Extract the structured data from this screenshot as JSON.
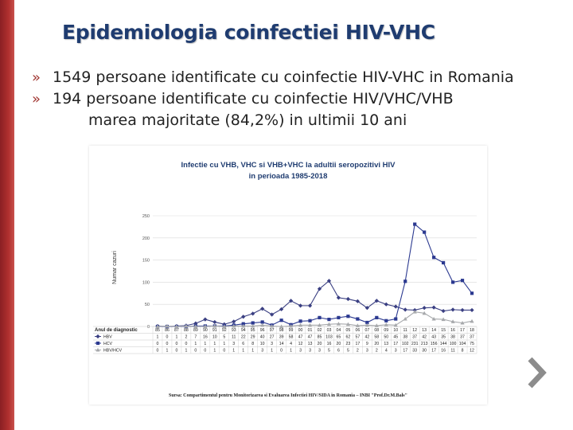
{
  "slide": {
    "title": "Epidemiologia coinfectiei HIV-VHC",
    "bullet_marker": "»",
    "bullets": [
      "1549 persoane identificate cu coinfectie HIV-VHC in Romania",
      "194 persoane identificate cu coinfectie HIV/VHC/VHB"
    ],
    "continuation": "marea majoritate (84,2%) in ultimii 10 ani"
  },
  "colors": {
    "accent_red": "#a03530",
    "title_blue": "#1f3c70",
    "vhb": "#3a3f82",
    "vhc": "#2b3990",
    "hbv_hcv": "#a7a9ac",
    "arrow": "#8c8c8c"
  },
  "chart_data": {
    "type": "line",
    "title": [
      "Infectie cu VHB, VHC si VHB+VHC la adultii seropozitivi HIV",
      "in perioada 1985-2018"
    ],
    "ylabel": "Numar cazuri",
    "ylim": [
      0,
      250
    ],
    "yticks": [
      0,
      50,
      100,
      150,
      200,
      250
    ],
    "table_header": "Anul de diagnostic",
    "categories": [
      "85",
      "86",
      "87",
      "88",
      "89",
      "90",
      "91",
      "92",
      "93",
      "94",
      "95",
      "96",
      "97",
      "98",
      "99",
      "00",
      "01",
      "02",
      "03",
      "04",
      "05",
      "06",
      "07",
      "08",
      "09",
      "10",
      "11",
      "12",
      "13",
      "14",
      "15",
      "16",
      "17",
      "18"
    ],
    "series": [
      {
        "name": "HBV",
        "marker": "diamond",
        "values": [
          1,
          0,
          1,
          2,
          7,
          16,
          10,
          5,
          11,
          22,
          29,
          40,
          27,
          39,
          58,
          47,
          47,
          85,
          103,
          65,
          62,
          57,
          42,
          58,
          50,
          45,
          38,
          37,
          42,
          43,
          35,
          38,
          37,
          37
        ]
      },
      {
        "name": "HCV",
        "marker": "square",
        "values": [
          0,
          0,
          0,
          0,
          1,
          1,
          1,
          1,
          3,
          6,
          8,
          10,
          3,
          14,
          4,
          12,
          13,
          20,
          16,
          20,
          23,
          17,
          9,
          20,
          13,
          17,
          102,
          231,
          213,
          156,
          144,
          100,
          104,
          75
        ]
      },
      {
        "name": "HBV/HCV",
        "marker": "triangle",
        "values": [
          0,
          1,
          0,
          1,
          0,
          0,
          1,
          0,
          1,
          1,
          1,
          3,
          1,
          0,
          1,
          3,
          3,
          3,
          5,
          6,
          5,
          2,
          3,
          2,
          4,
          3,
          17,
          33,
          30,
          17,
          16,
          11,
          8,
          12
        ]
      }
    ],
    "source": "Sursa: Compartimentul pentru Monitorizarea si Evaluarea Infectiei HIV/SIDA in Romania – INBI \"Prof.Dr.M.Bals\""
  }
}
